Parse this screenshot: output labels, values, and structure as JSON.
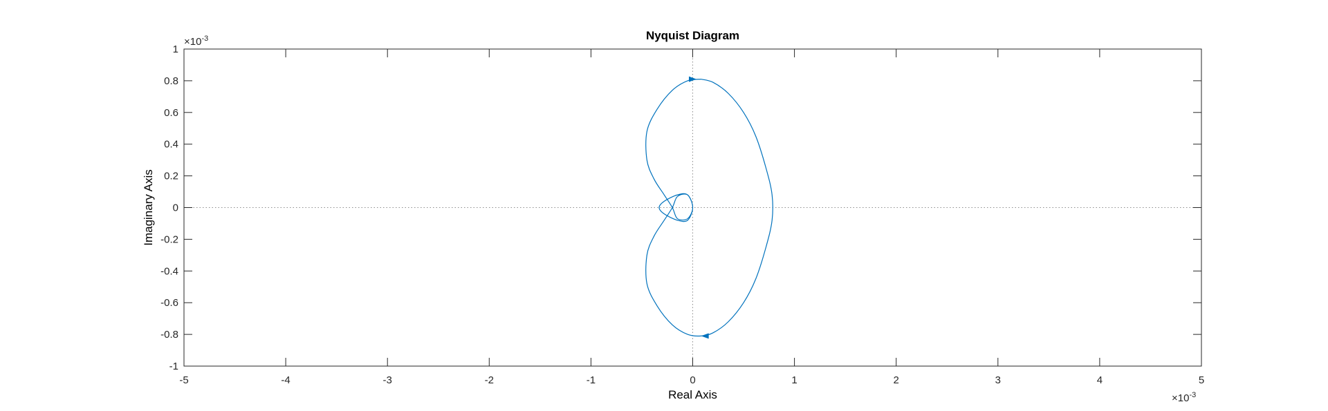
{
  "chart_data": {
    "type": "line",
    "title": "Nyquist Diagram",
    "xlabel": "Real Axis",
    "ylabel": "Imaginary Axis",
    "xlim": [
      -5,
      5
    ],
    "ylim": [
      -1,
      1
    ],
    "x_exponent_label": "×10",
    "x_exponent_power": "-3",
    "y_exponent_label": "×10",
    "y_exponent_power": "-3",
    "x_ticks": [
      -5,
      -4,
      -3,
      -2,
      -1,
      0,
      1,
      2,
      3,
      4,
      5
    ],
    "x_tick_labels": [
      "-5",
      "-4",
      "-3",
      "-2",
      "-1",
      "0",
      "1",
      "2",
      "3",
      "4",
      "5"
    ],
    "y_ticks": [
      -1,
      -0.8,
      -0.6,
      -0.4,
      -0.2,
      0,
      0.2,
      0.4,
      0.6,
      0.8,
      1
    ],
    "y_tick_labels": [
      "-1",
      "-0.8",
      "-0.6",
      "-0.4",
      "-0.2",
      "0",
      "0.2",
      "0.4",
      "0.6",
      "0.8",
      "1"
    ],
    "grid": false,
    "zero_lines": true,
    "color": "#0072bd",
    "series": [
      {
        "x": [
          0.08,
          0.2,
          0.35,
          0.5,
          0.62,
          0.72,
          0.78,
          0.78,
          0.72,
          0.62,
          0.5,
          0.35,
          0.2,
          0.08,
          -0.05,
          -0.2,
          -0.35,
          -0.45,
          -0.45,
          -0.38,
          -0.28,
          -0.2,
          -0.15,
          -0.05,
          0.0,
          -0.05,
          -0.15,
          -0.28,
          -0.33,
          -0.28,
          -0.15,
          -0.05,
          0.0,
          -0.05,
          -0.15,
          -0.2,
          -0.28,
          -0.38,
          -0.45,
          -0.45,
          -0.35,
          -0.2,
          -0.05,
          0.08
        ],
        "y": [
          0.81,
          0.79,
          0.72,
          0.6,
          0.45,
          0.25,
          0.08,
          -0.08,
          -0.25,
          -0.45,
          -0.6,
          -0.72,
          -0.79,
          -0.81,
          -0.8,
          -0.74,
          -0.62,
          -0.48,
          -0.3,
          -0.18,
          -0.08,
          0.0,
          0.07,
          0.08,
          0.0,
          -0.08,
          -0.08,
          -0.04,
          0.0,
          0.04,
          0.08,
          0.08,
          0.0,
          -0.07,
          -0.07,
          0.0,
          0.08,
          0.18,
          0.3,
          0.48,
          0.62,
          0.74,
          0.8,
          0.81
        ]
      }
    ]
  }
}
